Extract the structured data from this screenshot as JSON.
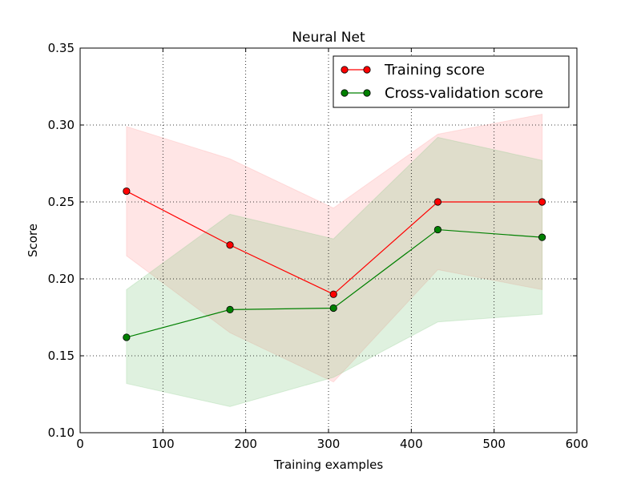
{
  "chart_data": {
    "type": "line",
    "title": "Neural Net",
    "xlabel": "Training examples",
    "ylabel": "Score",
    "xlim": [
      0,
      600
    ],
    "ylim": [
      0.1,
      0.35
    ],
    "xticks": [
      0,
      100,
      200,
      300,
      400,
      500,
      600
    ],
    "xtick_labels": [
      "0",
      "100",
      "200",
      "300",
      "400",
      "500",
      "600"
    ],
    "yticks": [
      0.1,
      0.15,
      0.2,
      0.25,
      0.3,
      0.35
    ],
    "ytick_labels": [
      "0.10",
      "0.15",
      "0.20",
      "0.25",
      "0.30",
      "0.35"
    ],
    "grid": true,
    "legend_position": "top-right",
    "x": [
      56,
      181,
      306,
      432,
      558
    ],
    "series": [
      {
        "name": "Training score",
        "color": "#ff0000",
        "band_color": "#ff9999",
        "values": [
          0.257,
          0.222,
          0.19,
          0.25,
          0.25
        ],
        "band_upper": [
          0.299,
          0.278,
          0.246,
          0.294,
          0.307
        ],
        "band_lower": [
          0.215,
          0.165,
          0.133,
          0.206,
          0.193
        ]
      },
      {
        "name": "Cross-validation score",
        "color": "#008000",
        "band_color": "#7fc97f",
        "values": [
          0.162,
          0.18,
          0.181,
          0.232,
          0.227
        ],
        "band_upper": [
          0.193,
          0.242,
          0.226,
          0.292,
          0.277
        ],
        "band_lower": [
          0.132,
          0.117,
          0.136,
          0.172,
          0.177
        ]
      }
    ]
  }
}
